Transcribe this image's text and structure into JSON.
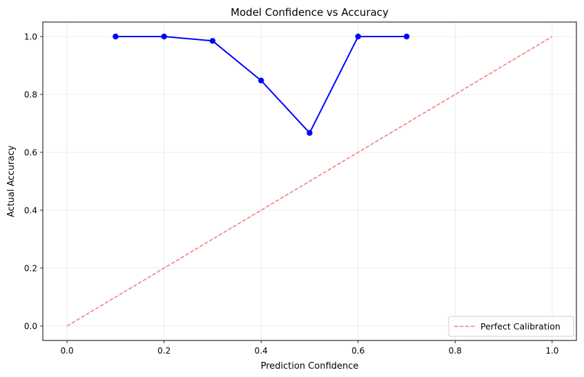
{
  "chart_data": {
    "type": "line",
    "title": "Model Confidence vs Accuracy",
    "xlabel": "Prediction Confidence",
    "ylabel": "Actual Accuracy",
    "xlim": [
      -0.05,
      1.05
    ],
    "ylim": [
      -0.05,
      1.05
    ],
    "x_ticks": [
      "0.0",
      "0.2",
      "0.4",
      "0.6",
      "0.8",
      "1.0"
    ],
    "y_ticks": [
      "0.0",
      "0.2",
      "0.4",
      "0.6",
      "0.8",
      "1.0"
    ],
    "grid": true,
    "legend_position": "lower-right",
    "series": [
      {
        "x": [
          0.1,
          0.2,
          0.3,
          0.4,
          0.5,
          0.6,
          0.7
        ],
        "y": [
          1.0,
          1.0,
          0.985,
          0.848,
          0.667,
          1.0,
          1.0
        ],
        "color": "#0000ff",
        "style": "solid",
        "markers": true
      },
      {
        "name": "Perfect Calibration",
        "x": [
          0.0,
          1.0
        ],
        "y": [
          0.0,
          1.0
        ],
        "color": "#f08080",
        "style": "dashed",
        "markers": false
      }
    ]
  }
}
